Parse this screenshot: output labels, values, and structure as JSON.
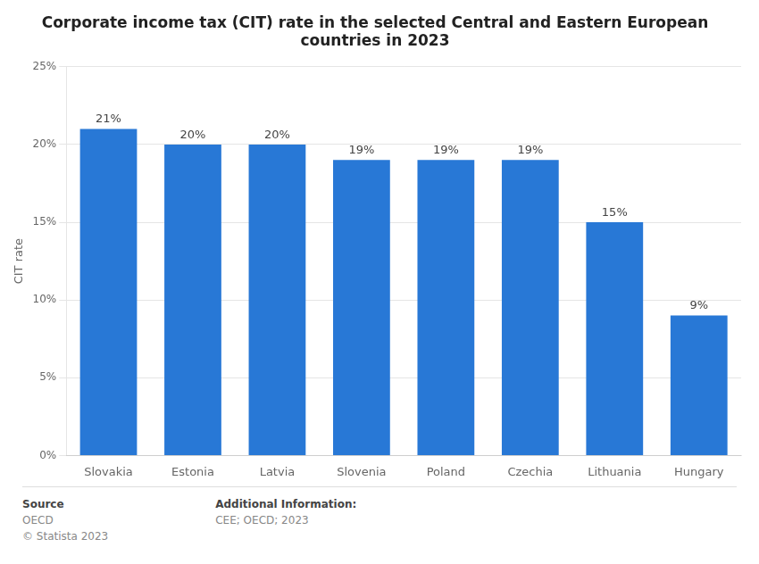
{
  "chart_data": {
    "type": "bar",
    "title": "Corporate income tax (CIT) rate in the selected Central and Eastern European\ncountries in 2023",
    "categories": [
      "Slovakia",
      "Estonia",
      "Latvia",
      "Slovenia",
      "Poland",
      "Czechia",
      "Lithuania",
      "Hungary"
    ],
    "values": [
      21,
      20,
      20,
      19,
      19,
      19,
      15,
      9
    ],
    "value_labels": [
      "21%",
      "20%",
      "20%",
      "19%",
      "19%",
      "19%",
      "15%",
      "9%"
    ],
    "data_labels": true,
    "color": "#2878d6",
    "ylabel": "CIT rate",
    "ylim": [
      0,
      25
    ],
    "yticks": [
      {
        "value": 0,
        "label": "0%"
      },
      {
        "value": 5,
        "label": "5%"
      },
      {
        "value": 10,
        "label": "10%"
      },
      {
        "value": 15,
        "label": "15%"
      },
      {
        "value": 20,
        "label": "20%"
      },
      {
        "value": 25,
        "label": "25%"
      }
    ],
    "grid": true,
    "annotations": [
      [
        "Source",
        "OECD",
        "© Statista 2023"
      ],
      [
        "Additional Information:",
        "CEE; OECD; 2023"
      ]
    ]
  }
}
